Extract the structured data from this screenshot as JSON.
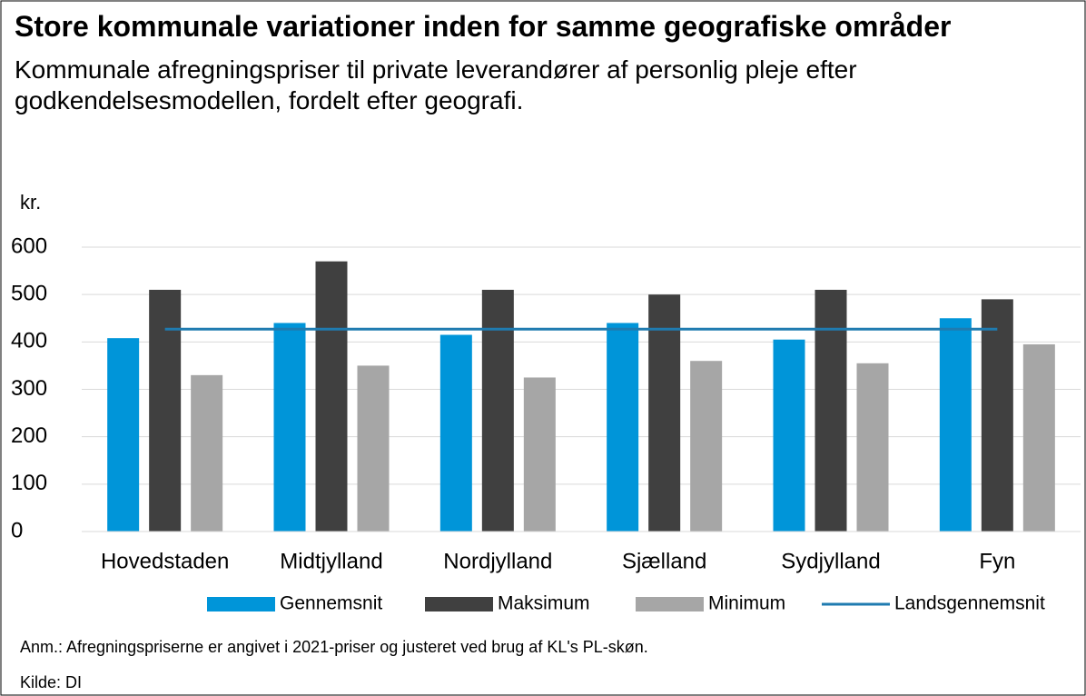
{
  "chart_data": {
    "type": "bar",
    "title": "Store kommunale variationer inden for samme geografiske områder",
    "subtitle": "Kommunale afregningspriser til private leverandører af personlig pleje efter godkendelsesmodellen, fordelt efter geografi.",
    "y_label": "kr.",
    "categories": [
      "Hovedstaden",
      "Midtjylland",
      "Nordjylland",
      "Sjælland",
      "Sydjylland",
      "Fyn"
    ],
    "series": [
      {
        "name": "Gennemsnit",
        "color": "#0095d9",
        "values": [
          408,
          440,
          415,
          440,
          405,
          450
        ]
      },
      {
        "name": "Maksimum",
        "color": "#404040",
        "values": [
          510,
          570,
          510,
          500,
          510,
          490
        ]
      },
      {
        "name": "Minimum",
        "color": "#a6a6a6",
        "values": [
          330,
          350,
          325,
          360,
          355,
          395
        ]
      },
      {
        "name": "Landsgennemsnit",
        "color": "#1f7bb0",
        "type": "line",
        "values": [
          427,
          427,
          427,
          427,
          427,
          427
        ]
      }
    ],
    "ylim": [
      0,
      600
    ],
    "yticks": [
      0,
      100,
      200,
      300,
      400,
      500,
      600
    ],
    "grid": true,
    "legend": "bottom",
    "note": "Anm.: Afregningspriserne er angivet i 2021-priser og justeret ved brug af KL's PL-skøn.",
    "source": "Kilde: DI"
  }
}
